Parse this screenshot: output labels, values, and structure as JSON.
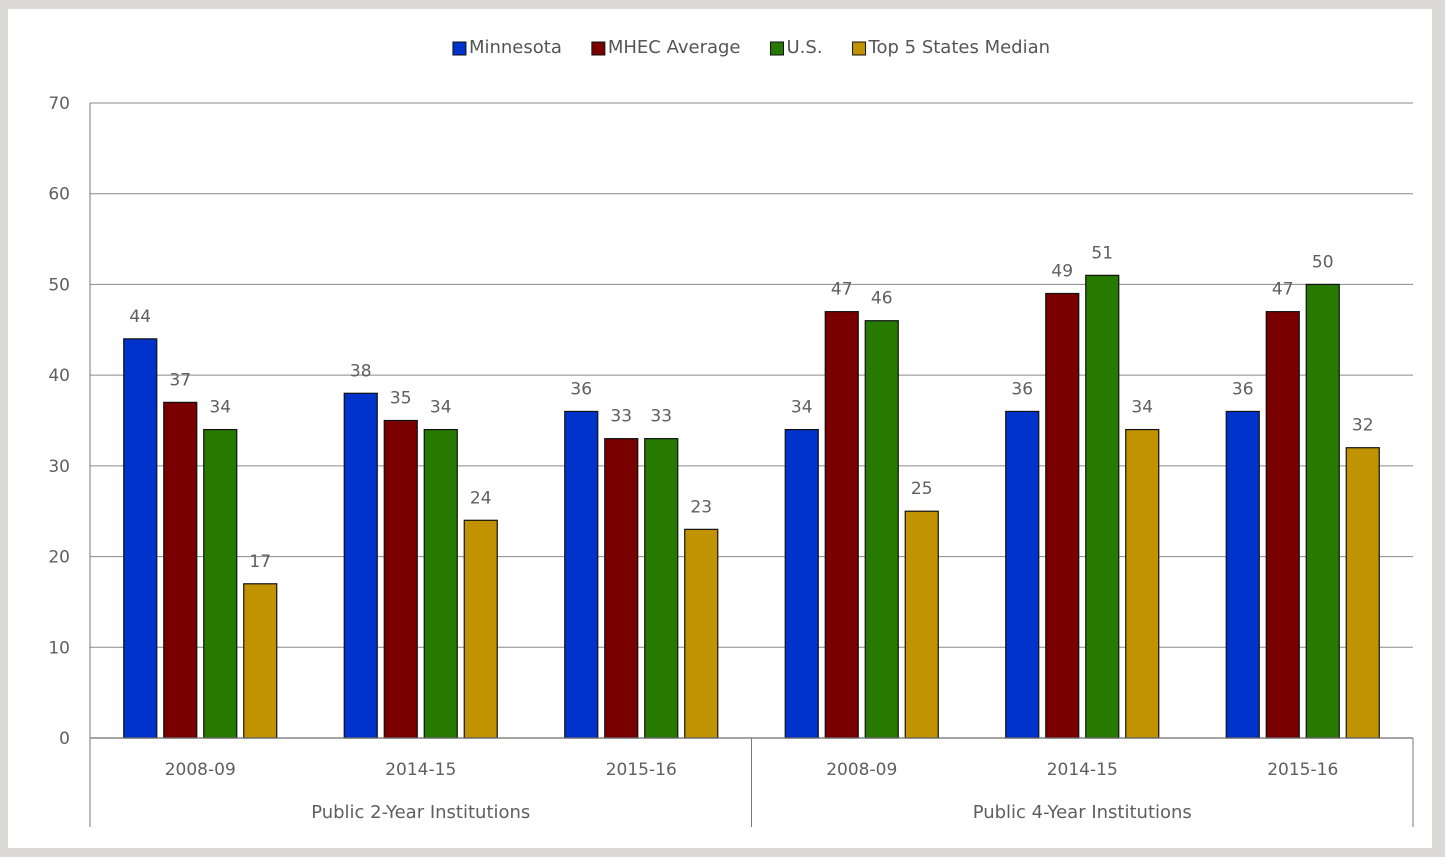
{
  "chart_data": {
    "type": "bar",
    "title": "",
    "xlabel": "",
    "ylabel": "",
    "ylim": [
      0,
      70
    ],
    "yticks": [
      0,
      10,
      20,
      30,
      40,
      50,
      60,
      70
    ],
    "grid": true,
    "legend_position": "top-center",
    "groups": [
      {
        "label": "Public 2-Year Institutions",
        "categories": [
          "2008-09",
          "2014-15",
          "2015-16"
        ]
      },
      {
        "label": "Public 4-Year Institutions",
        "categories": [
          "2008-09",
          "2014-15",
          "2015-16"
        ]
      }
    ],
    "categories": [
      "2008-09",
      "2014-15",
      "2015-16",
      "2008-09",
      "2014-15",
      "2015-16"
    ],
    "series": [
      {
        "name": "Minnesota",
        "color": "#0033cc",
        "values": [
          44,
          38,
          36,
          34,
          36,
          36
        ]
      },
      {
        "name": "MHEC Average",
        "color": "#7a0000",
        "values": [
          37,
          35,
          33,
          47,
          49,
          47
        ]
      },
      {
        "name": "U.S.",
        "color": "#267a00",
        "values": [
          34,
          34,
          33,
          46,
          51,
          50
        ]
      },
      {
        "name": "Top 5 States Median",
        "color": "#c29300",
        "values": [
          17,
          24,
          23,
          25,
          34,
          32
        ]
      }
    ],
    "data_labels": true
  }
}
